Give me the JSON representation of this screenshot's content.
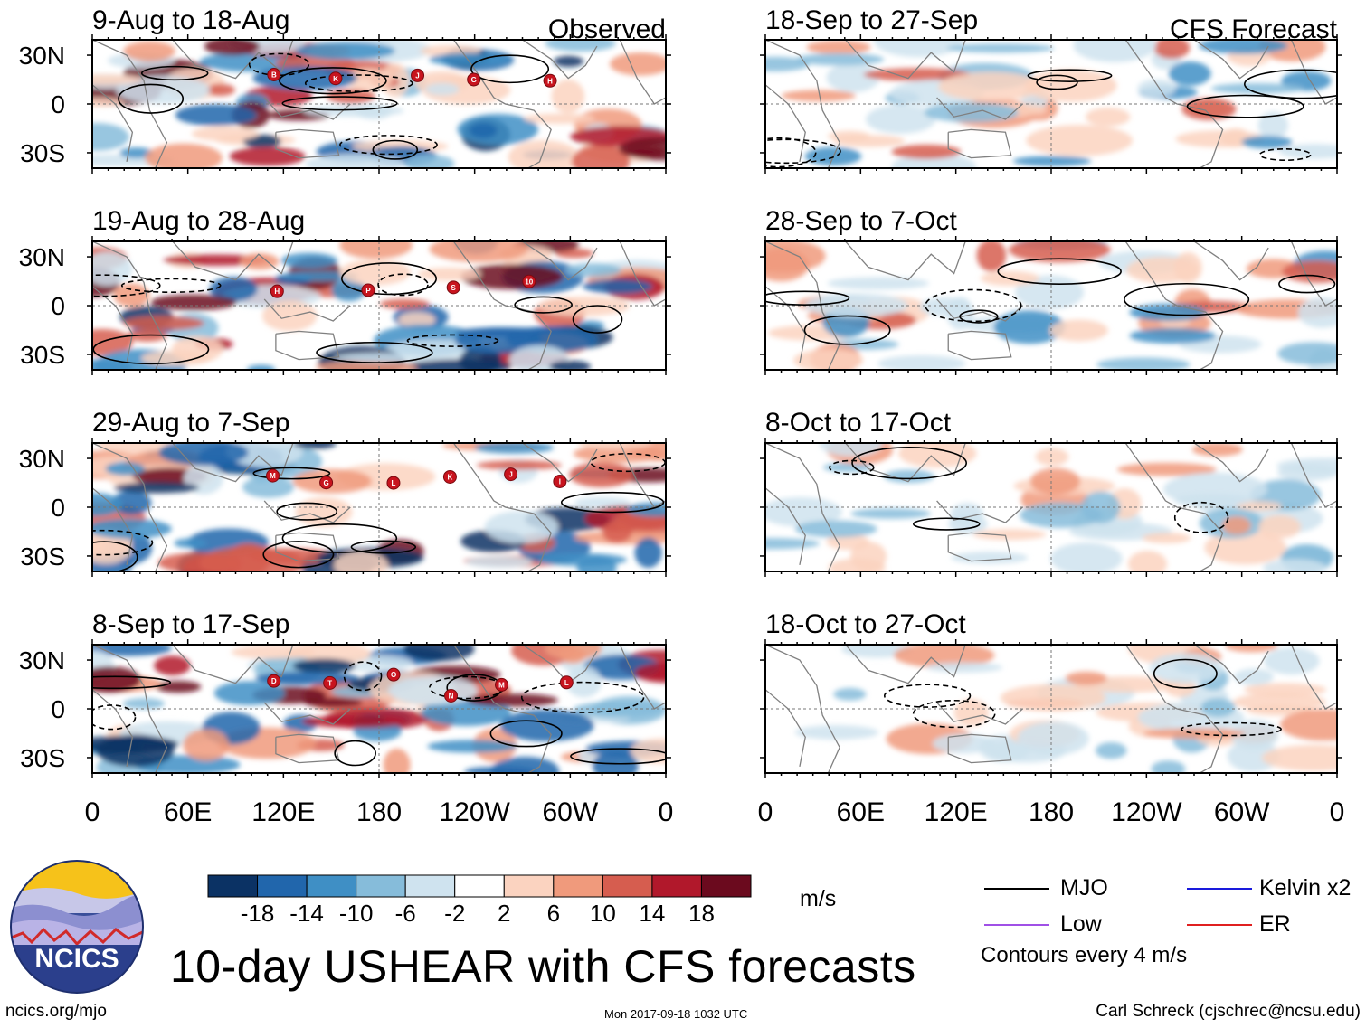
{
  "main_title": "10-day USHEAR with CFS forecasts",
  "units_label": "m/s",
  "contour_note": "Contours every 4 m/s",
  "footer": {
    "site": "ncics.org/mjo",
    "timestamp": "Mon 2017-09-18 1032 UTC",
    "author": "Carl Schreck (cjschrec@ncsu.edu)"
  },
  "logo": {
    "text": "NCICS"
  },
  "column_headers": {
    "observed": "Observed",
    "forecast": "CFS Forecast"
  },
  "legend": [
    {
      "label": "MJO",
      "color": "#000000"
    },
    {
      "label": "Kelvin x2",
      "color": "#1a1adc"
    },
    {
      "label": "Low",
      "color": "#a050e6"
    },
    {
      "label": "ER",
      "color": "#e02020"
    }
  ],
  "colorbar": {
    "colors": [
      "#0b3264",
      "#2166ac",
      "#3f8fc5",
      "#86bcda",
      "#cfe3ef",
      "#ffffff",
      "#fbd3c0",
      "#f09a7c",
      "#d65d4f",
      "#b1182b",
      "#6b0a1e"
    ],
    "labels": [
      "-18",
      "-14",
      "-10",
      "-6",
      "-2",
      "2",
      "6",
      "10",
      "14",
      "18"
    ]
  },
  "chart_data": {
    "type": "heatmap",
    "variable": "USHEAR",
    "x_tick_labels": [
      "0",
      "60E",
      "120E",
      "180",
      "120W",
      "60W",
      "0"
    ],
    "y_tick_labels": [
      "30N",
      "0",
      "30S"
    ],
    "panels": [
      {
        "column": "observed",
        "title": "9-Aug to 18-Aug",
        "storms": [
          "B",
          "K",
          "J",
          "G",
          "H"
        ]
      },
      {
        "column": "observed",
        "title": "19-Aug to 28-Aug",
        "storms": [
          "H",
          "P",
          "S",
          "10"
        ]
      },
      {
        "column": "observed",
        "title": "29-Aug to 7-Sep",
        "storms": [
          "M",
          "G",
          "L",
          "K",
          "J",
          "I"
        ]
      },
      {
        "column": "observed",
        "title": "8-Sep to 17-Sep",
        "storms": [
          "D",
          "T",
          "O",
          "N",
          "M",
          "L"
        ]
      },
      {
        "column": "forecast",
        "title": "18-Sep to 27-Sep",
        "storms": []
      },
      {
        "column": "forecast",
        "title": "28-Sep to 7-Oct",
        "storms": []
      },
      {
        "column": "forecast",
        "title": "8-Oct to 17-Oct",
        "storms": []
      },
      {
        "column": "forecast",
        "title": "18-Oct to 27-Oct",
        "storms": []
      }
    ]
  }
}
